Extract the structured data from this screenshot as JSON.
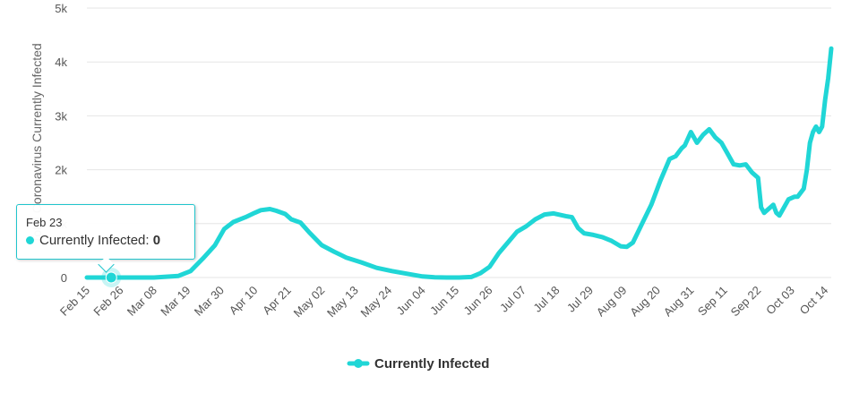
{
  "chart_data": {
    "type": "line",
    "title": "",
    "xlabel": "",
    "ylabel": "Total Coronavirus Currently Infected",
    "ylim": [
      0,
      5000
    ],
    "y_ticks": [
      0,
      1000,
      2000,
      3000,
      4000,
      5000
    ],
    "y_tick_labels": [
      "0",
      "1k",
      "2k",
      "3k",
      "4k",
      "5k"
    ],
    "x_tick_labels": [
      "Feb 15",
      "Feb 26",
      "Mar 08",
      "Mar 19",
      "Mar 30",
      "Apr 10",
      "Apr 21",
      "May 02",
      "May 13",
      "May 24",
      "Jun 04",
      "Jun 15",
      "Jun 26",
      "Jul 07",
      "Jul 18",
      "Jul 29",
      "Aug 09",
      "Aug 20",
      "Aug 31",
      "Sep 11",
      "Sep 22",
      "Oct 03",
      "Oct 14"
    ],
    "x_tick_day_index": [
      0,
      11,
      22,
      33,
      44,
      55,
      66,
      77,
      88,
      99,
      110,
      121,
      132,
      143,
      154,
      165,
      176,
      187,
      198,
      209,
      220,
      231,
      242
    ],
    "series": [
      {
        "name": "Currently Infected",
        "color": "#20d6d6",
        "day_index": [
          0,
          8,
          15,
          22,
          30,
          34,
          38,
          42,
          45,
          48,
          52,
          55,
          57,
          60,
          62,
          65,
          67,
          70,
          73,
          77,
          81,
          85,
          90,
          95,
          100,
          105,
          110,
          114,
          118,
          122,
          126,
          129,
          132,
          135,
          138,
          141,
          144,
          147,
          150,
          153,
          157,
          159,
          161,
          163,
          166,
          169,
          172,
          175,
          177,
          179,
          182,
          185,
          188,
          191,
          193,
          195,
          196,
          198,
          200,
          202,
          204,
          206,
          208,
          210,
          212,
          214,
          216,
          218,
          220,
          221,
          222,
          223,
          225,
          226,
          227,
          228,
          230,
          232,
          233,
          235,
          236,
          237,
          238,
          239,
          240,
          241,
          242,
          243,
          244
        ],
        "values": [
          0,
          0,
          0,
          0,
          30,
          120,
          350,
          600,
          900,
          1030,
          1120,
          1200,
          1250,
          1270,
          1240,
          1180,
          1080,
          1020,
          830,
          600,
          480,
          370,
          280,
          180,
          120,
          70,
          20,
          5,
          0,
          0,
          10,
          80,
          200,
          450,
          650,
          850,
          950,
          1080,
          1170,
          1190,
          1140,
          1120,
          920,
          820,
          790,
          750,
          680,
          580,
          570,
          650,
          1000,
          1350,
          1800,
          2200,
          2250,
          2400,
          2450,
          2700,
          2500,
          2650,
          2750,
          2600,
          2500,
          2300,
          2100,
          2080,
          2100,
          1950,
          1850,
          1300,
          1200,
          1250,
          1350,
          1200,
          1150,
          1250,
          1450,
          1500,
          1500,
          1650,
          2000,
          2500,
          2700,
          2800,
          2700,
          2800,
          3300,
          3700,
          4250
        ]
      }
    ],
    "legend": {
      "position": "bottom-center",
      "labels": [
        "Currently Infected"
      ]
    },
    "tooltip": {
      "date": "Feb 23",
      "series": "Currently Infected",
      "value": "0",
      "day_index": 8
    },
    "grid": true
  }
}
